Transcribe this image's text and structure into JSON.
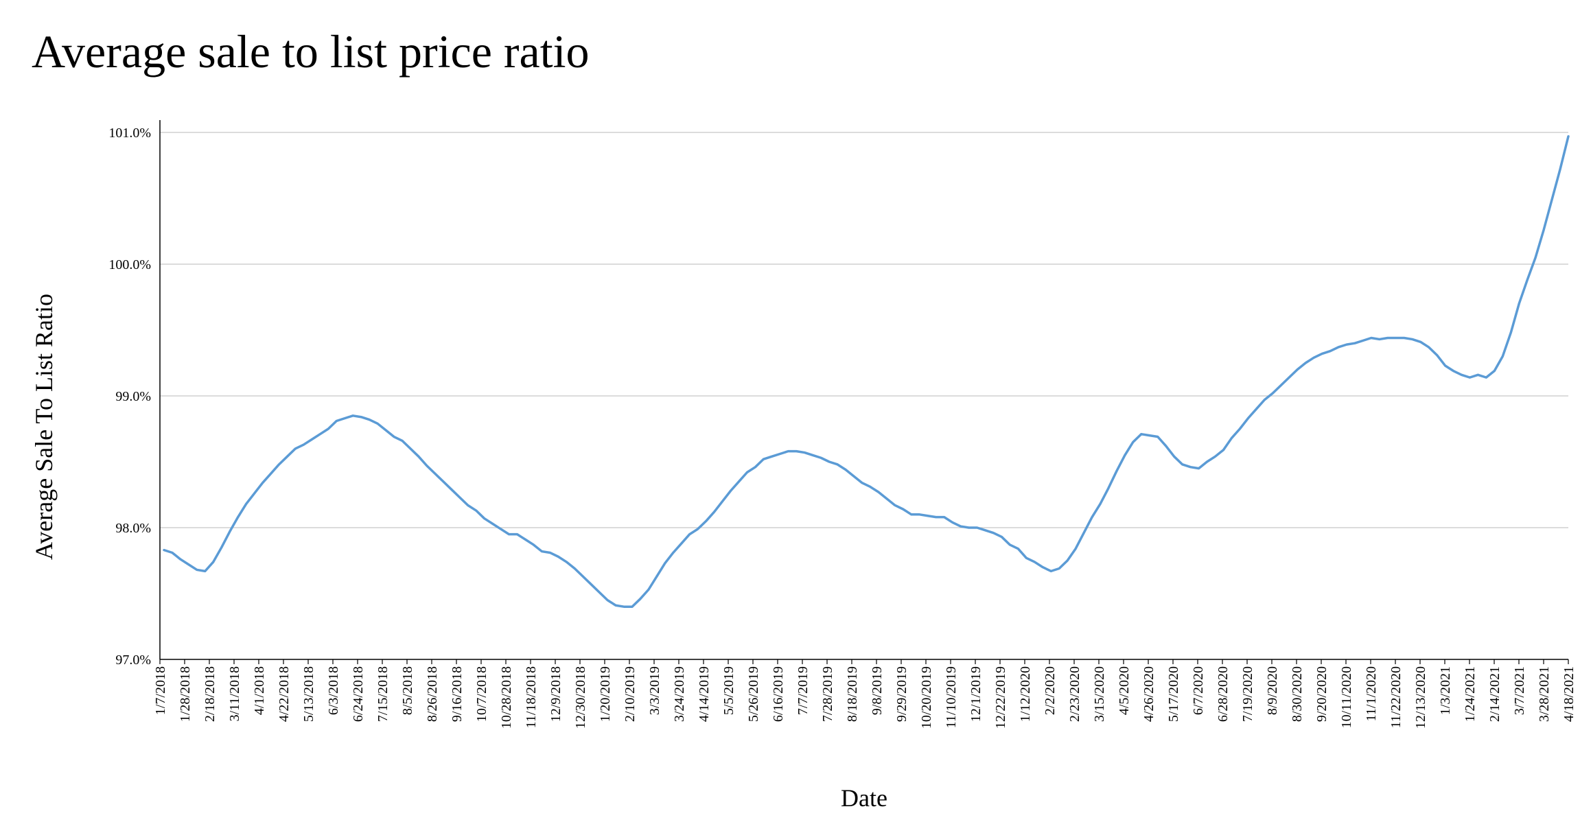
{
  "chart_data": {
    "type": "line",
    "title": "Average sale to list price ratio",
    "xlabel": "Date",
    "ylabel": "Average Sale To List Ratio",
    "ylim": [
      97.0,
      101.0
    ],
    "y_ticks": [
      "97.0%",
      "98.0%",
      "99.0%",
      "100.0%",
      "101.0%"
    ],
    "grid": true,
    "line_color": "#5b9bd5",
    "x_tick_labels": [
      "1/7/2018",
      "1/28/2018",
      "2/18/2018",
      "3/11/2018",
      "4/1/2018",
      "4/22/2018",
      "5/13/2018",
      "6/3/2018",
      "6/24/2018",
      "7/15/2018",
      "8/5/2018",
      "8/26/2018",
      "9/16/2018",
      "10/7/2018",
      "10/28/2018",
      "11/18/2018",
      "12/9/2018",
      "12/30/2018",
      "1/20/2019",
      "2/10/2019",
      "3/3/2019",
      "3/24/2019",
      "4/14/2019",
      "5/5/2019",
      "5/26/2019",
      "6/16/2019",
      "7/7/2019",
      "7/28/2019",
      "8/18/2019",
      "9/8/2019",
      "9/29/2019",
      "10/20/2019",
      "11/10/2019",
      "12/1/2019",
      "12/22/2019",
      "1/12/2020",
      "2/2/2020",
      "2/23/2020",
      "3/15/2020",
      "4/5/2020",
      "4/26/2020",
      "5/17/2020",
      "6/7/2020",
      "6/28/2020",
      "7/19/2020",
      "8/9/2020",
      "8/30/2020",
      "9/20/2020",
      "10/11/2020",
      "11/1/2020",
      "11/22/2020",
      "12/13/2020",
      "1/3/2021",
      "1/24/2021",
      "2/14/2021",
      "3/7/2021",
      "3/28/2021",
      "4/18/2021"
    ],
    "series": [
      {
        "values": [
          97.83,
          97.81,
          97.76,
          97.72,
          97.68,
          97.67,
          97.74,
          97.85,
          97.97,
          98.08,
          98.18,
          98.26,
          98.34,
          98.41,
          98.48,
          98.54,
          98.6,
          98.63,
          98.67,
          98.71,
          98.75,
          98.81,
          98.83,
          98.85,
          98.84,
          98.82,
          98.79,
          98.74,
          98.69,
          98.66,
          98.6,
          98.54,
          98.47,
          98.41,
          98.35,
          98.29,
          98.23,
          98.17,
          98.13,
          98.07,
          98.03,
          97.99,
          97.95,
          97.95,
          97.91,
          97.87,
          97.82,
          97.81,
          97.78,
          97.74,
          97.69,
          97.63,
          97.57,
          97.51,
          97.45,
          97.41,
          97.4,
          97.4,
          97.46,
          97.53,
          97.63,
          97.73,
          97.81,
          97.88,
          97.95,
          97.99,
          98.05,
          98.12,
          98.2,
          98.28,
          98.35,
          98.42,
          98.46,
          98.52,
          98.54,
          98.56,
          98.58,
          98.58,
          98.57,
          98.55,
          98.53,
          98.5,
          98.48,
          98.44,
          98.39,
          98.34,
          98.31,
          98.27,
          98.22,
          98.17,
          98.14,
          98.1,
          98.1,
          98.09,
          98.08,
          98.08,
          98.04,
          98.01,
          98.0,
          98.0,
          97.98,
          97.96,
          97.93,
          97.87,
          97.84,
          97.77,
          97.74,
          97.7,
          97.67,
          97.69,
          97.75,
          97.84,
          97.96,
          98.08,
          98.18,
          98.3,
          98.43,
          98.55,
          98.65,
          98.71,
          98.7,
          98.69,
          98.62,
          98.54,
          98.48,
          98.46,
          98.45,
          98.5,
          98.54,
          98.59,
          98.68,
          98.75,
          98.83,
          98.9,
          98.97,
          99.02,
          99.08,
          99.14,
          99.2,
          99.25,
          99.29,
          99.32,
          99.34,
          99.37,
          99.39,
          99.4,
          99.42,
          99.44,
          99.43,
          99.44,
          99.44,
          99.44,
          99.43,
          99.41,
          99.37,
          99.31,
          99.23,
          99.19,
          99.16,
          99.14,
          99.16,
          99.14,
          99.19,
          99.3,
          99.48,
          99.7,
          99.88,
          100.05,
          100.26,
          100.49,
          100.72,
          100.97
        ]
      }
    ]
  }
}
